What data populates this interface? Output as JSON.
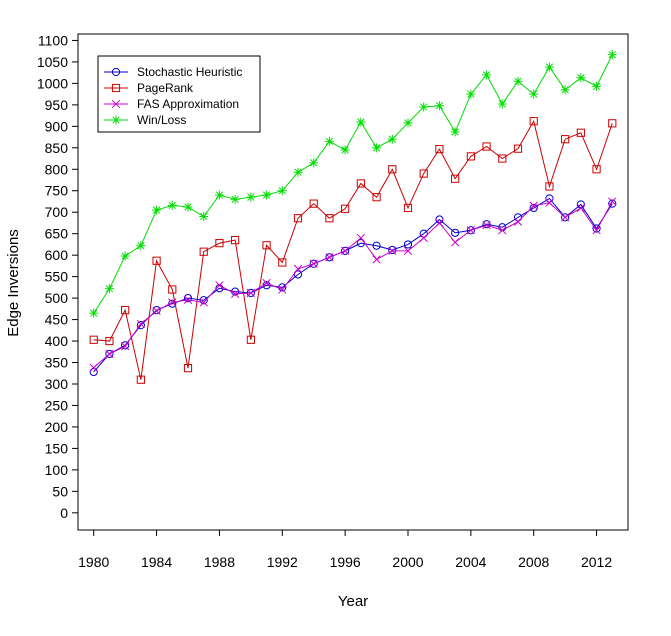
{
  "chart_data": {
    "type": "line",
    "title": "",
    "xlabel": "Year",
    "ylabel": "Edge Inversions",
    "xlim": [
      1979,
      2014
    ],
    "ylim": [
      -40,
      1115
    ],
    "xticks": [
      1980,
      1984,
      1988,
      1992,
      1996,
      2000,
      2004,
      2008,
      2012
    ],
    "yticks": [
      0,
      50,
      100,
      150,
      200,
      250,
      300,
      350,
      400,
      450,
      500,
      550,
      600,
      650,
      700,
      750,
      800,
      850,
      900,
      950,
      1000,
      1050,
      1100
    ],
    "grid": false,
    "legend_position": "top-left",
    "x": [
      1980,
      1981,
      1982,
      1983,
      1984,
      1985,
      1986,
      1987,
      1988,
      1989,
      1990,
      1991,
      1992,
      1993,
      1994,
      1995,
      1996,
      1997,
      1998,
      1999,
      2000,
      2001,
      2002,
      2003,
      2004,
      2005,
      2006,
      2007,
      2008,
      2009,
      2010,
      2011,
      2012,
      2013
    ],
    "series": [
      {
        "name": "Stochastic Heuristic",
        "color": "#0000cc",
        "marker": "circle",
        "values": [
          328,
          370,
          390,
          437,
          472,
          487,
          500,
          495,
          523,
          515,
          512,
          530,
          525,
          555,
          580,
          595,
          610,
          628,
          622,
          612,
          625,
          650,
          683,
          652,
          658,
          672,
          665,
          688,
          710,
          732,
          688,
          718,
          662,
          720
        ]
      },
      {
        "name": "PageRank",
        "color": "#cc0000",
        "marker": "square",
        "values": [
          403,
          400,
          472,
          310,
          587,
          520,
          337,
          608,
          628,
          635,
          403,
          623,
          583,
          686,
          720,
          686,
          708,
          767,
          735,
          800,
          710,
          790,
          847,
          778,
          830,
          853,
          825,
          848,
          912,
          760,
          870,
          885,
          800,
          907
        ]
      },
      {
        "name": "FAS Approximation",
        "color": "#cc00cc",
        "marker": "x",
        "values": [
          338,
          370,
          388,
          440,
          470,
          490,
          496,
          490,
          530,
          510,
          512,
          535,
          520,
          568,
          580,
          595,
          610,
          640,
          590,
          610,
          610,
          640,
          675,
          630,
          658,
          670,
          658,
          678,
          715,
          722,
          688,
          710,
          658,
          725
        ]
      },
      {
        "name": "Win/Loss",
        "color": "#00dd00",
        "marker": "star",
        "values": [
          465,
          522,
          598,
          622,
          705,
          716,
          712,
          690,
          740,
          730,
          735,
          740,
          750,
          793,
          815,
          865,
          845,
          910,
          850,
          870,
          908,
          945,
          948,
          887,
          975,
          1020,
          952,
          1005,
          975,
          1038,
          985,
          1013,
          993,
          1067
        ]
      }
    ]
  }
}
